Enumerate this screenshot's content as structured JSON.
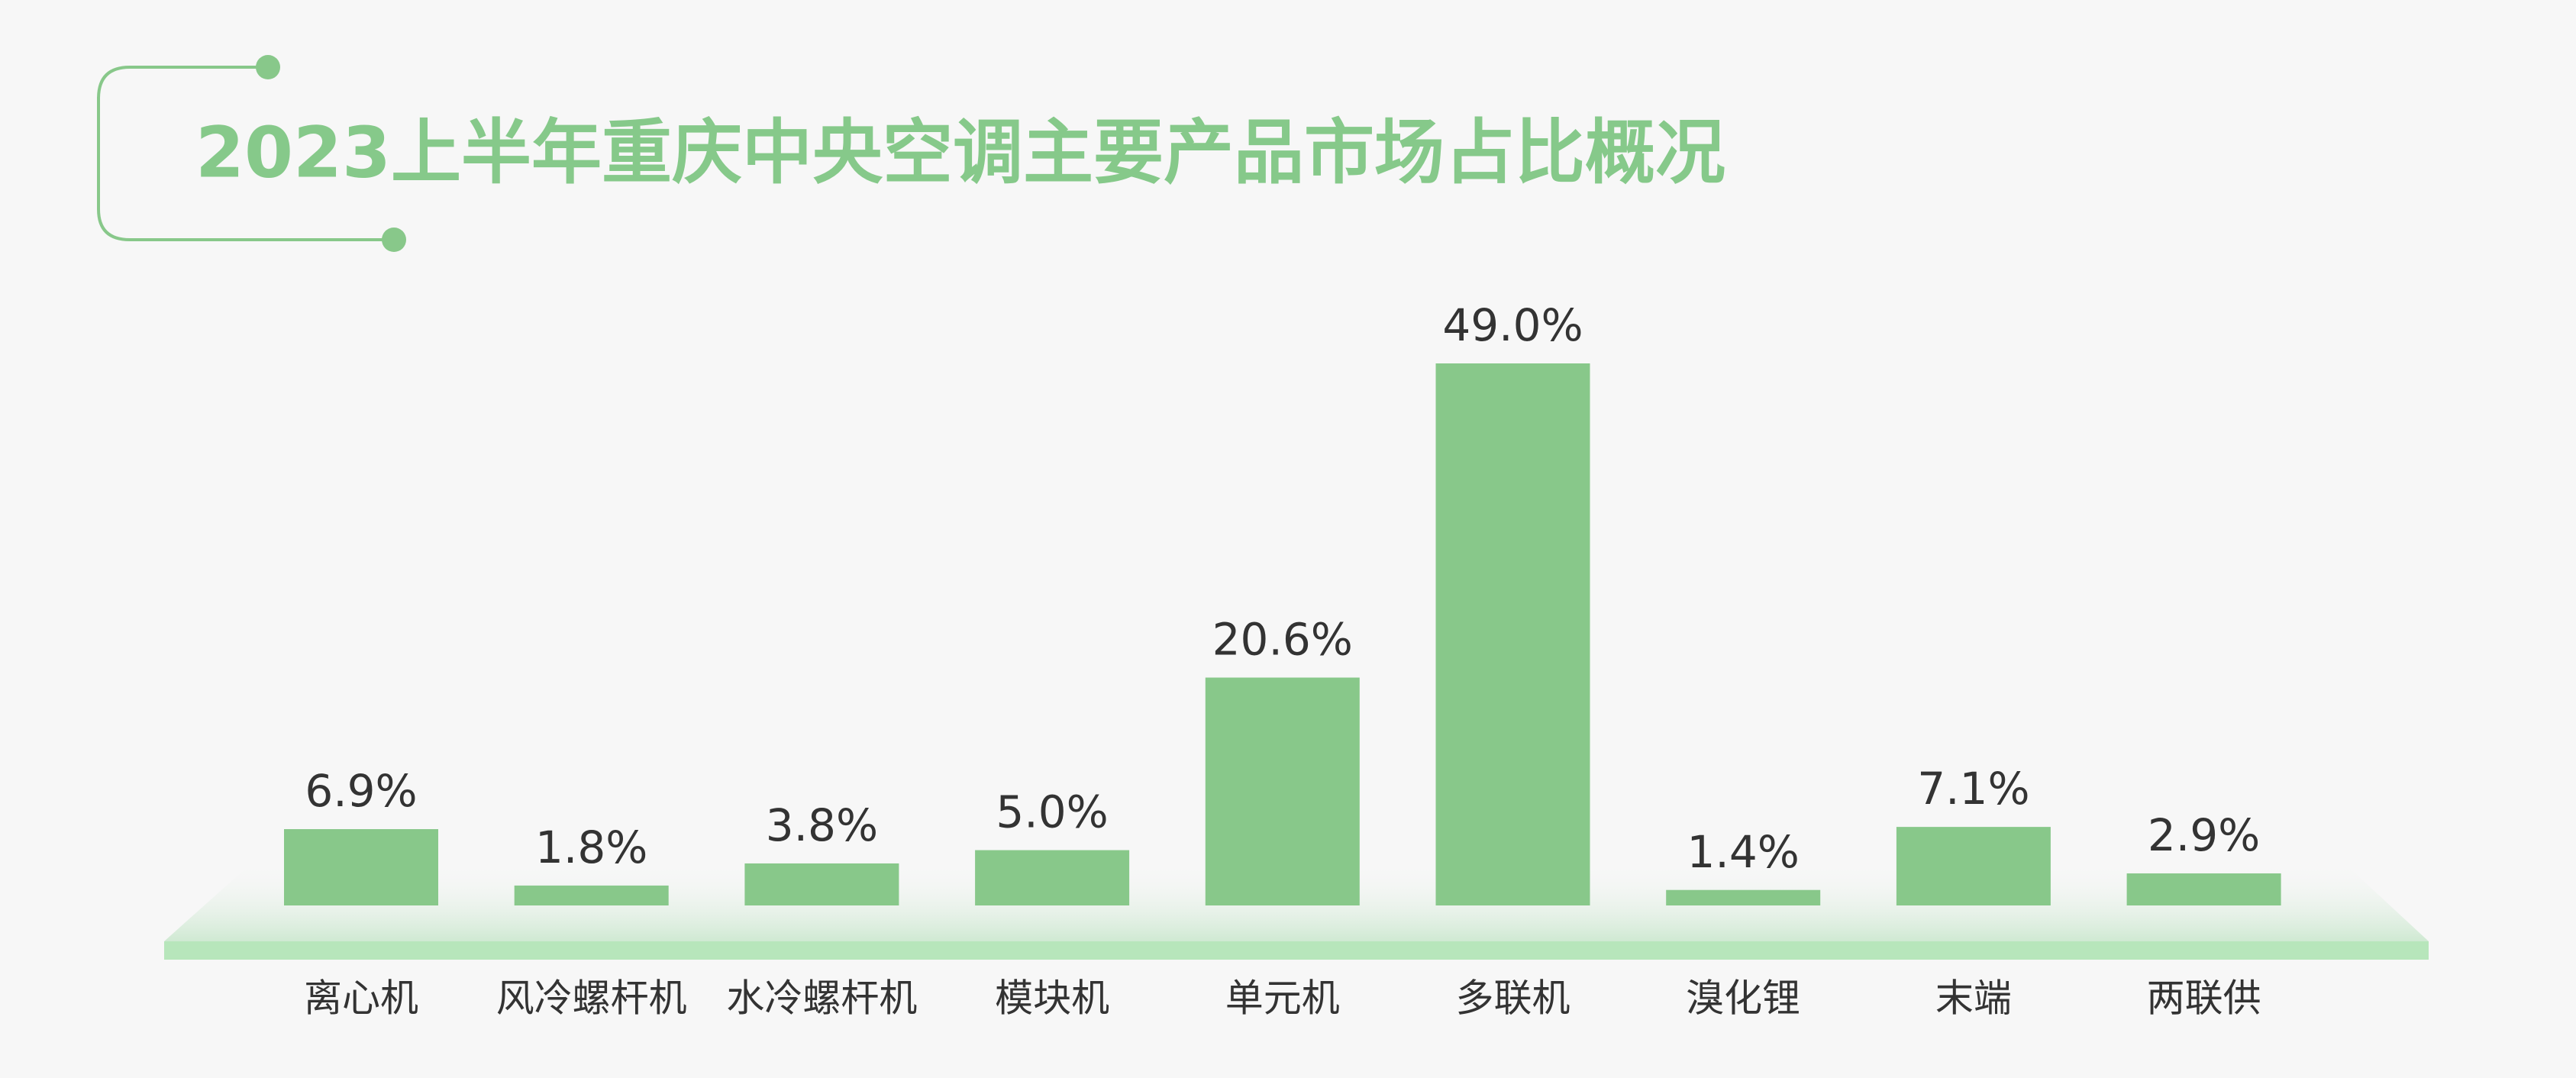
{
  "chart_data": {
    "type": "bar",
    "title": "2023上半年重庆中央空调主要产品市场占比概况",
    "categories": [
      "离心机",
      "风冷螺杆机",
      "水冷螺杆机",
      "模块机",
      "单元机",
      "多联机",
      "溴化锂",
      "末端",
      "两联供"
    ],
    "values": [
      6.9,
      1.8,
      3.8,
      5.0,
      20.6,
      49.0,
      1.4,
      7.1,
      2.9
    ],
    "value_labels": [
      "6.9%",
      "1.8%",
      "3.8%",
      "5.0%",
      "20.6%",
      "49.0%",
      "1.4%",
      "7.1%",
      "2.9%"
    ],
    "color": "#88c88a"
  }
}
